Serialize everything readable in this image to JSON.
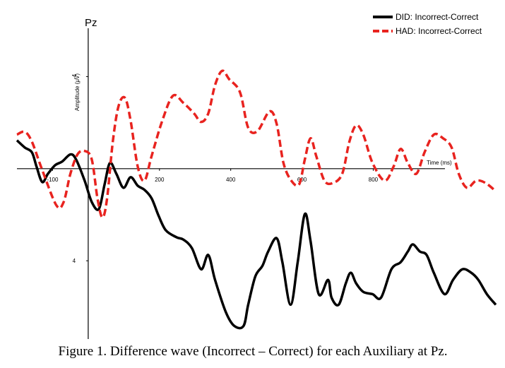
{
  "chart_data": {
    "type": "line",
    "title": "Pz",
    "caption": "Figure 1.  Difference wave (Incorrect – Correct) for each Auxiliary at Pz.",
    "x_label": "Time (ms)",
    "y_label": "Amplitude (μV)",
    "xlim": [
      -200,
      1150
    ],
    "ylim": [
      -6.1,
      7.4
    ],
    "y_inverted": true,
    "xticks": [
      -100,
      200,
      400,
      600,
      800
    ],
    "yticks": [
      -4,
      4
    ],
    "legend": "top-right",
    "series": [
      {
        "name": "DID: Incorrect-Correct",
        "color": "#000000",
        "dashed": false,
        "x": [
          -200,
          -178,
          -158,
          -145,
          -129,
          -113,
          -93,
          -73,
          -50,
          -34,
          -10,
          10,
          30,
          46,
          61,
          79,
          99,
          119,
          139,
          158,
          178,
          198,
          218,
          248,
          267,
          291,
          317,
          337,
          356,
          386,
          410,
          436,
          449,
          469,
          489,
          505,
          529,
          545,
          568,
          588,
          608,
          624,
          647,
          673,
          683,
          703,
          723,
          737,
          752,
          772,
          798,
          822,
          851,
          877,
          897,
          911,
          931,
          950,
          970,
          1000,
          1024,
          1050,
          1075,
          1095,
          1119,
          1144
        ],
        "values": [
          -1.23,
          -0.92,
          -0.71,
          -0.09,
          0.58,
          0.22,
          -0.15,
          -0.31,
          -0.62,
          -0.4,
          0.52,
          1.45,
          1.75,
          0.68,
          -0.25,
          0.22,
          0.83,
          0.37,
          0.74,
          0.92,
          1.29,
          2.06,
          2.68,
          2.98,
          3.08,
          3.45,
          4.37,
          3.75,
          4.83,
          6.22,
          6.83,
          6.83,
          5.91,
          4.68,
          4.22,
          3.6,
          3.02,
          4.06,
          5.91,
          4.06,
          1.97,
          3.14,
          5.45,
          4.83,
          5.6,
          5.91,
          4.98,
          4.52,
          4.98,
          5.35,
          5.45,
          5.6,
          4.37,
          4.06,
          3.6,
          3.29,
          3.6,
          3.75,
          4.52,
          5.45,
          4.83,
          4.37,
          4.52,
          4.83,
          5.45,
          5.91
        ]
      },
      {
        "name": "HAD: Incorrect-Correct",
        "color": "#e8231f",
        "dashed": true,
        "x": [
          -200,
          -178,
          -158,
          -129,
          -89,
          -69,
          -50,
          -30,
          -10,
          10,
          26,
          40,
          53,
          69,
          85,
          103,
          119,
          139,
          158,
          178,
          208,
          238,
          267,
          297,
          317,
          337,
          356,
          376,
          396,
          426,
          449,
          475,
          509,
          529,
          548,
          570,
          592,
          608,
          624,
          640,
          663,
          687,
          713,
          733,
          752,
          772,
          798,
          832,
          857,
          877,
          897,
          921,
          944,
          970,
          996,
          1020,
          1040,
          1063,
          1089,
          1115,
          1144
        ],
        "values": [
          -1.48,
          -1.6,
          -1.17,
          0.06,
          1.6,
          1.45,
          0.22,
          -0.62,
          -0.77,
          -0.4,
          1.29,
          2.12,
          1.29,
          -1.17,
          -2.71,
          -3.08,
          -2.09,
          -0.09,
          0.52,
          -0.55,
          -2.09,
          -3.17,
          -2.86,
          -2.4,
          -2.03,
          -2.4,
          -3.63,
          -4.25,
          -3.88,
          -3.32,
          -1.78,
          -1.63,
          -2.49,
          -1.94,
          -0.25,
          0.52,
          0.68,
          -0.4,
          -1.32,
          -0.55,
          0.52,
          0.62,
          0.22,
          -1.17,
          -1.88,
          -1.48,
          -0.25,
          0.52,
          -0.09,
          -0.86,
          -0.25,
          0.22,
          -0.71,
          -1.48,
          -1.32,
          -0.92,
          0.22,
          0.83,
          0.52,
          0.62,
          0.98
        ]
      }
    ]
  }
}
